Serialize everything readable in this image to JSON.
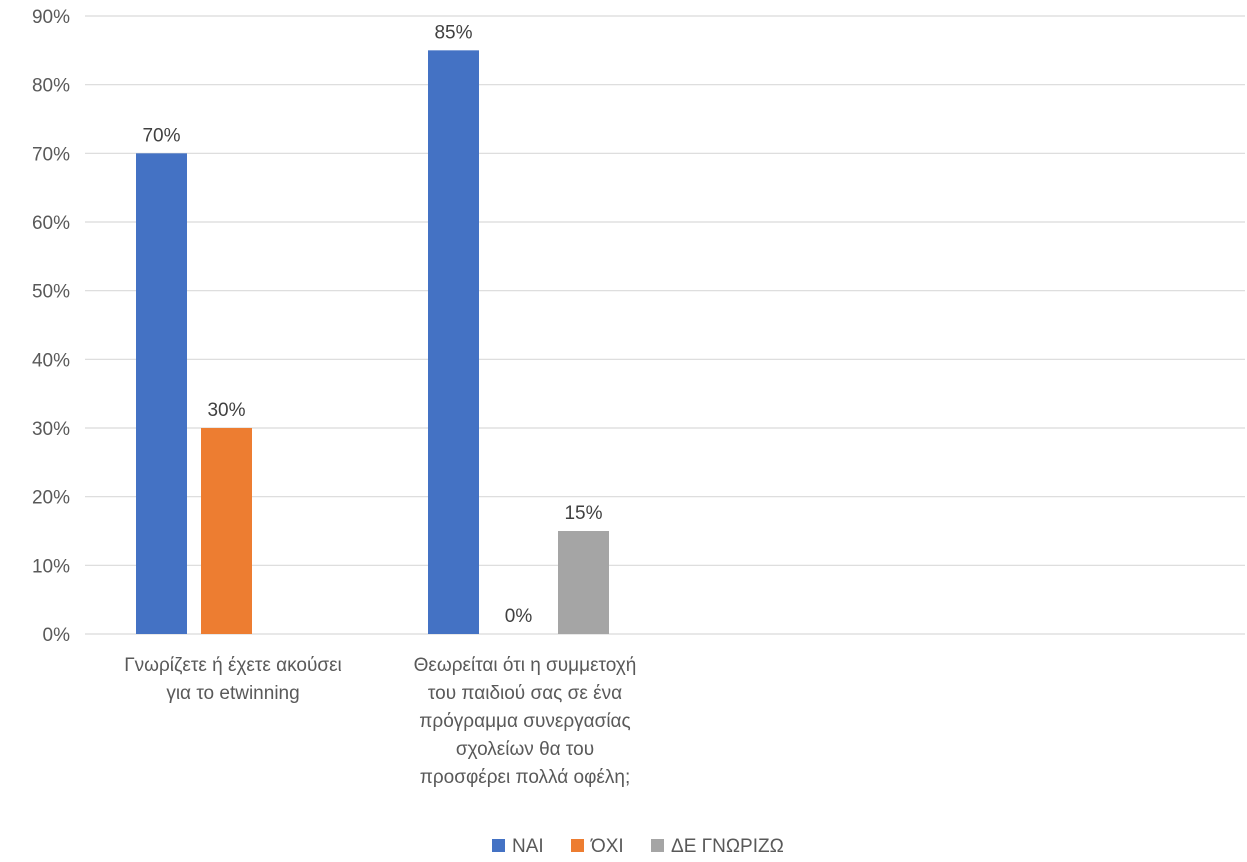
{
  "chart_data": {
    "type": "bar",
    "ylim": [
      0,
      90
    ],
    "y_ticks": [
      0,
      10,
      20,
      30,
      40,
      50,
      60,
      70,
      80,
      90
    ],
    "y_tick_suffix": "%",
    "grid": true,
    "legend_position": "bottom",
    "categories": [
      [
        "Γνωρίζετε ή έχετε ακούσει",
        "για το etwinning"
      ],
      [
        "Θεωρείται ότι η συμμετοχή",
        "του παιδιού σας σε ένα",
        "πρόγραμμα συνεργασίας",
        "σχολείων θα του",
        "προσφέρει πολλά οφέλη;"
      ]
    ],
    "series": [
      {
        "name": "ΝΑΙ",
        "color": "#4472C4",
        "values": [
          70,
          85
        ],
        "labels": [
          "70%",
          "85%"
        ]
      },
      {
        "name": "ΌΧΙ",
        "color": "#ED7D31",
        "values": [
          30,
          0
        ],
        "labels": [
          "30%",
          "0%"
        ]
      },
      {
        "name": "ΔΕ ΓΝΩΡΙΖΩ",
        "color": "#A5A5A5",
        "values": [
          null,
          15
        ],
        "labels": [
          null,
          "15%"
        ]
      }
    ]
  }
}
